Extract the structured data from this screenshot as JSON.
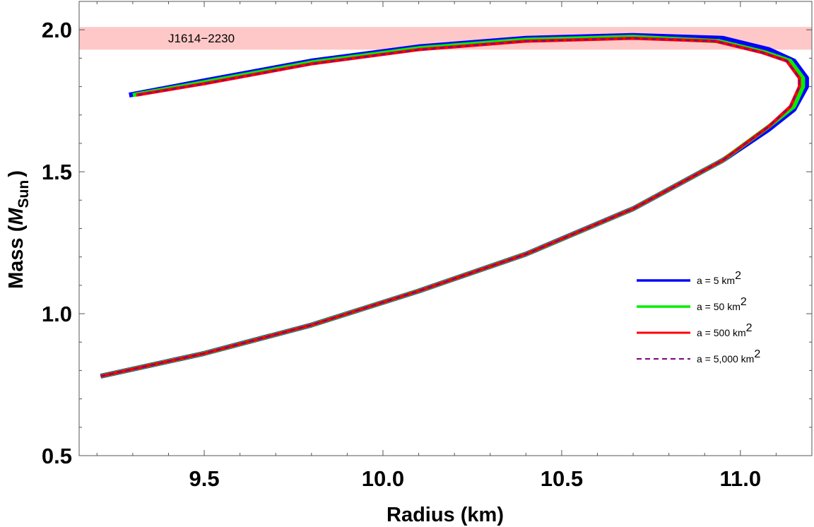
{
  "chart_data": {
    "type": "line",
    "title": "",
    "xlabel": "Radius (km)",
    "ylabel": {
      "prefix": "Mass (",
      "symbol": "M",
      "subscript": "Sun",
      "suffix": ")"
    },
    "xlim": [
      9.15,
      11.2
    ],
    "ylim": [
      0.5,
      2.1
    ],
    "xticks": [
      9.5,
      10.0,
      10.5,
      11.0
    ],
    "xtick_labels": [
      "9.5",
      "10.0",
      "10.5",
      "11.0"
    ],
    "yticks": [
      0.5,
      1.0,
      1.5,
      2.0
    ],
    "ytick_labels": [
      "0.5",
      "1.0",
      "1.5",
      "2.0"
    ],
    "grid": false,
    "band": {
      "label": "J1614−2230",
      "ymin": 1.93,
      "ymax": 2.01,
      "color": "#ffc8c8"
    },
    "legend_position": "right",
    "series": [
      {
        "name": "a = 5 km",
        "exponent": "2",
        "color": "#0000ff",
        "style": "solid",
        "x": [
          9.21,
          9.5,
          9.8,
          10.1,
          10.4,
          10.7,
          10.95,
          11.08,
          11.15,
          11.185,
          11.185,
          11.15,
          11.08,
          10.95,
          10.7,
          10.4,
          10.1,
          9.8,
          9.5,
          9.29
        ],
        "y": [
          0.78,
          0.86,
          0.96,
          1.08,
          1.21,
          1.37,
          1.54,
          1.65,
          1.72,
          1.8,
          1.83,
          1.89,
          1.93,
          1.97,
          1.98,
          1.97,
          1.94,
          1.89,
          1.82,
          1.77
        ]
      },
      {
        "name": "a = 50 km",
        "exponent": "2",
        "color": "#00ee00",
        "style": "solid",
        "x": [
          9.21,
          9.5,
          9.8,
          10.1,
          10.4,
          10.7,
          10.95,
          11.08,
          11.15,
          11.175,
          11.175,
          11.14,
          11.07,
          10.94,
          10.7,
          10.4,
          10.1,
          9.8,
          9.5,
          9.3
        ],
        "y": [
          0.78,
          0.86,
          0.96,
          1.08,
          1.21,
          1.37,
          1.54,
          1.66,
          1.73,
          1.8,
          1.83,
          1.89,
          1.92,
          1.96,
          1.975,
          1.965,
          1.935,
          1.885,
          1.815,
          1.77
        ]
      },
      {
        "name": "a = 500 km",
        "exponent": "2",
        "color": "#ff0000",
        "style": "solid",
        "x": [
          9.21,
          9.5,
          9.8,
          10.1,
          10.4,
          10.7,
          10.95,
          11.08,
          11.14,
          11.165,
          11.165,
          11.13,
          11.06,
          10.93,
          10.7,
          10.4,
          10.1,
          9.8,
          9.5,
          9.31
        ],
        "y": [
          0.78,
          0.86,
          0.96,
          1.08,
          1.21,
          1.37,
          1.54,
          1.66,
          1.73,
          1.8,
          1.83,
          1.89,
          1.92,
          1.96,
          1.97,
          1.96,
          1.93,
          1.88,
          1.81,
          1.77
        ]
      },
      {
        "name": "a = 5,000 km",
        "exponent": "2",
        "color": "#800080",
        "style": "dashed",
        "x": [
          9.21,
          9.5,
          9.8,
          10.1,
          10.4,
          10.7,
          10.95,
          11.08,
          11.14,
          11.165,
          11.165,
          11.13,
          11.06,
          10.93,
          10.7,
          10.4,
          10.1,
          9.8,
          9.5,
          9.31
        ],
        "y": [
          0.78,
          0.86,
          0.96,
          1.08,
          1.21,
          1.37,
          1.54,
          1.66,
          1.73,
          1.8,
          1.83,
          1.89,
          1.92,
          1.96,
          1.97,
          1.96,
          1.93,
          1.88,
          1.81,
          1.77
        ]
      }
    ]
  }
}
